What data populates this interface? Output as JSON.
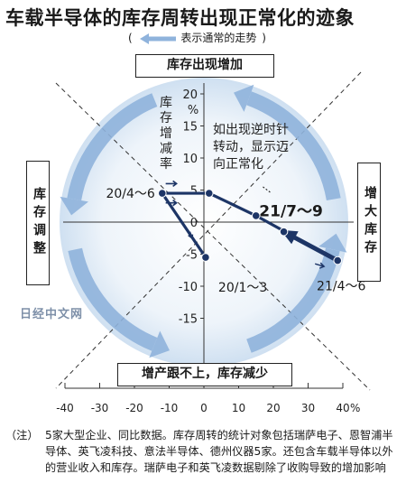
{
  "title": "车载半导体的库存周转出现正常化的迹象",
  "legend": {
    "open_paren": "(",
    "text": "表示通常的走势",
    "close_paren": ")"
  },
  "quadrants": {
    "top": "库存出现增加",
    "right": "增大库存",
    "bottom": "增产跟不上，库存减少",
    "left": "库存调整"
  },
  "annotation_text": [
    "如出现逆时针",
    "转动，显示迈",
    "向正常化"
  ],
  "watermark": "日经中文网",
  "note": {
    "label": "（注）",
    "text": "5家大型企业、同比数据。库存周转的统计对象包括瑞萨电子、恩智浦半导体、英飞凌科技、意法半导体、德州仪器5家。还包含车载半导体以外的营业收入和库存。瑞萨电子和英飞凌数据剔除了收购导致的增加影响"
  },
  "colors": {
    "cycle_arrow": "#8fb3dc",
    "data_line": "#1d3566",
    "background_circle": "#dce8f4"
  },
  "chart_data": {
    "type": "line",
    "x_axis": {
      "ticks": [
        -40,
        -30,
        -20,
        -10,
        0,
        10,
        20,
        30,
        40
      ],
      "unit": "%",
      "xlim": [
        -40,
        40
      ]
    },
    "y_axis": {
      "ticks": [
        20,
        15,
        10,
        5,
        0,
        -5,
        -10,
        -15
      ],
      "ylabel": [
        "库",
        "存",
        "增",
        "减",
        "率"
      ],
      "unit": "%",
      "ylim": [
        -20,
        22
      ]
    },
    "points": [
      {
        "x": 0.5,
        "y": -5.5,
        "label": "20/1～3"
      },
      {
        "x": -12,
        "y": 4.5,
        "label": "20/4～6"
      },
      {
        "x": 1.5,
        "y": 4.5,
        "label": ""
      },
      {
        "x": 15,
        "y": 1,
        "label": ""
      },
      {
        "x": 38.5,
        "y": -6,
        "label": "21/4～6"
      },
      {
        "x": 23,
        "y": -1.5,
        "label": "21/7～9"
      }
    ],
    "grid": false,
    "legend_position": "top"
  }
}
